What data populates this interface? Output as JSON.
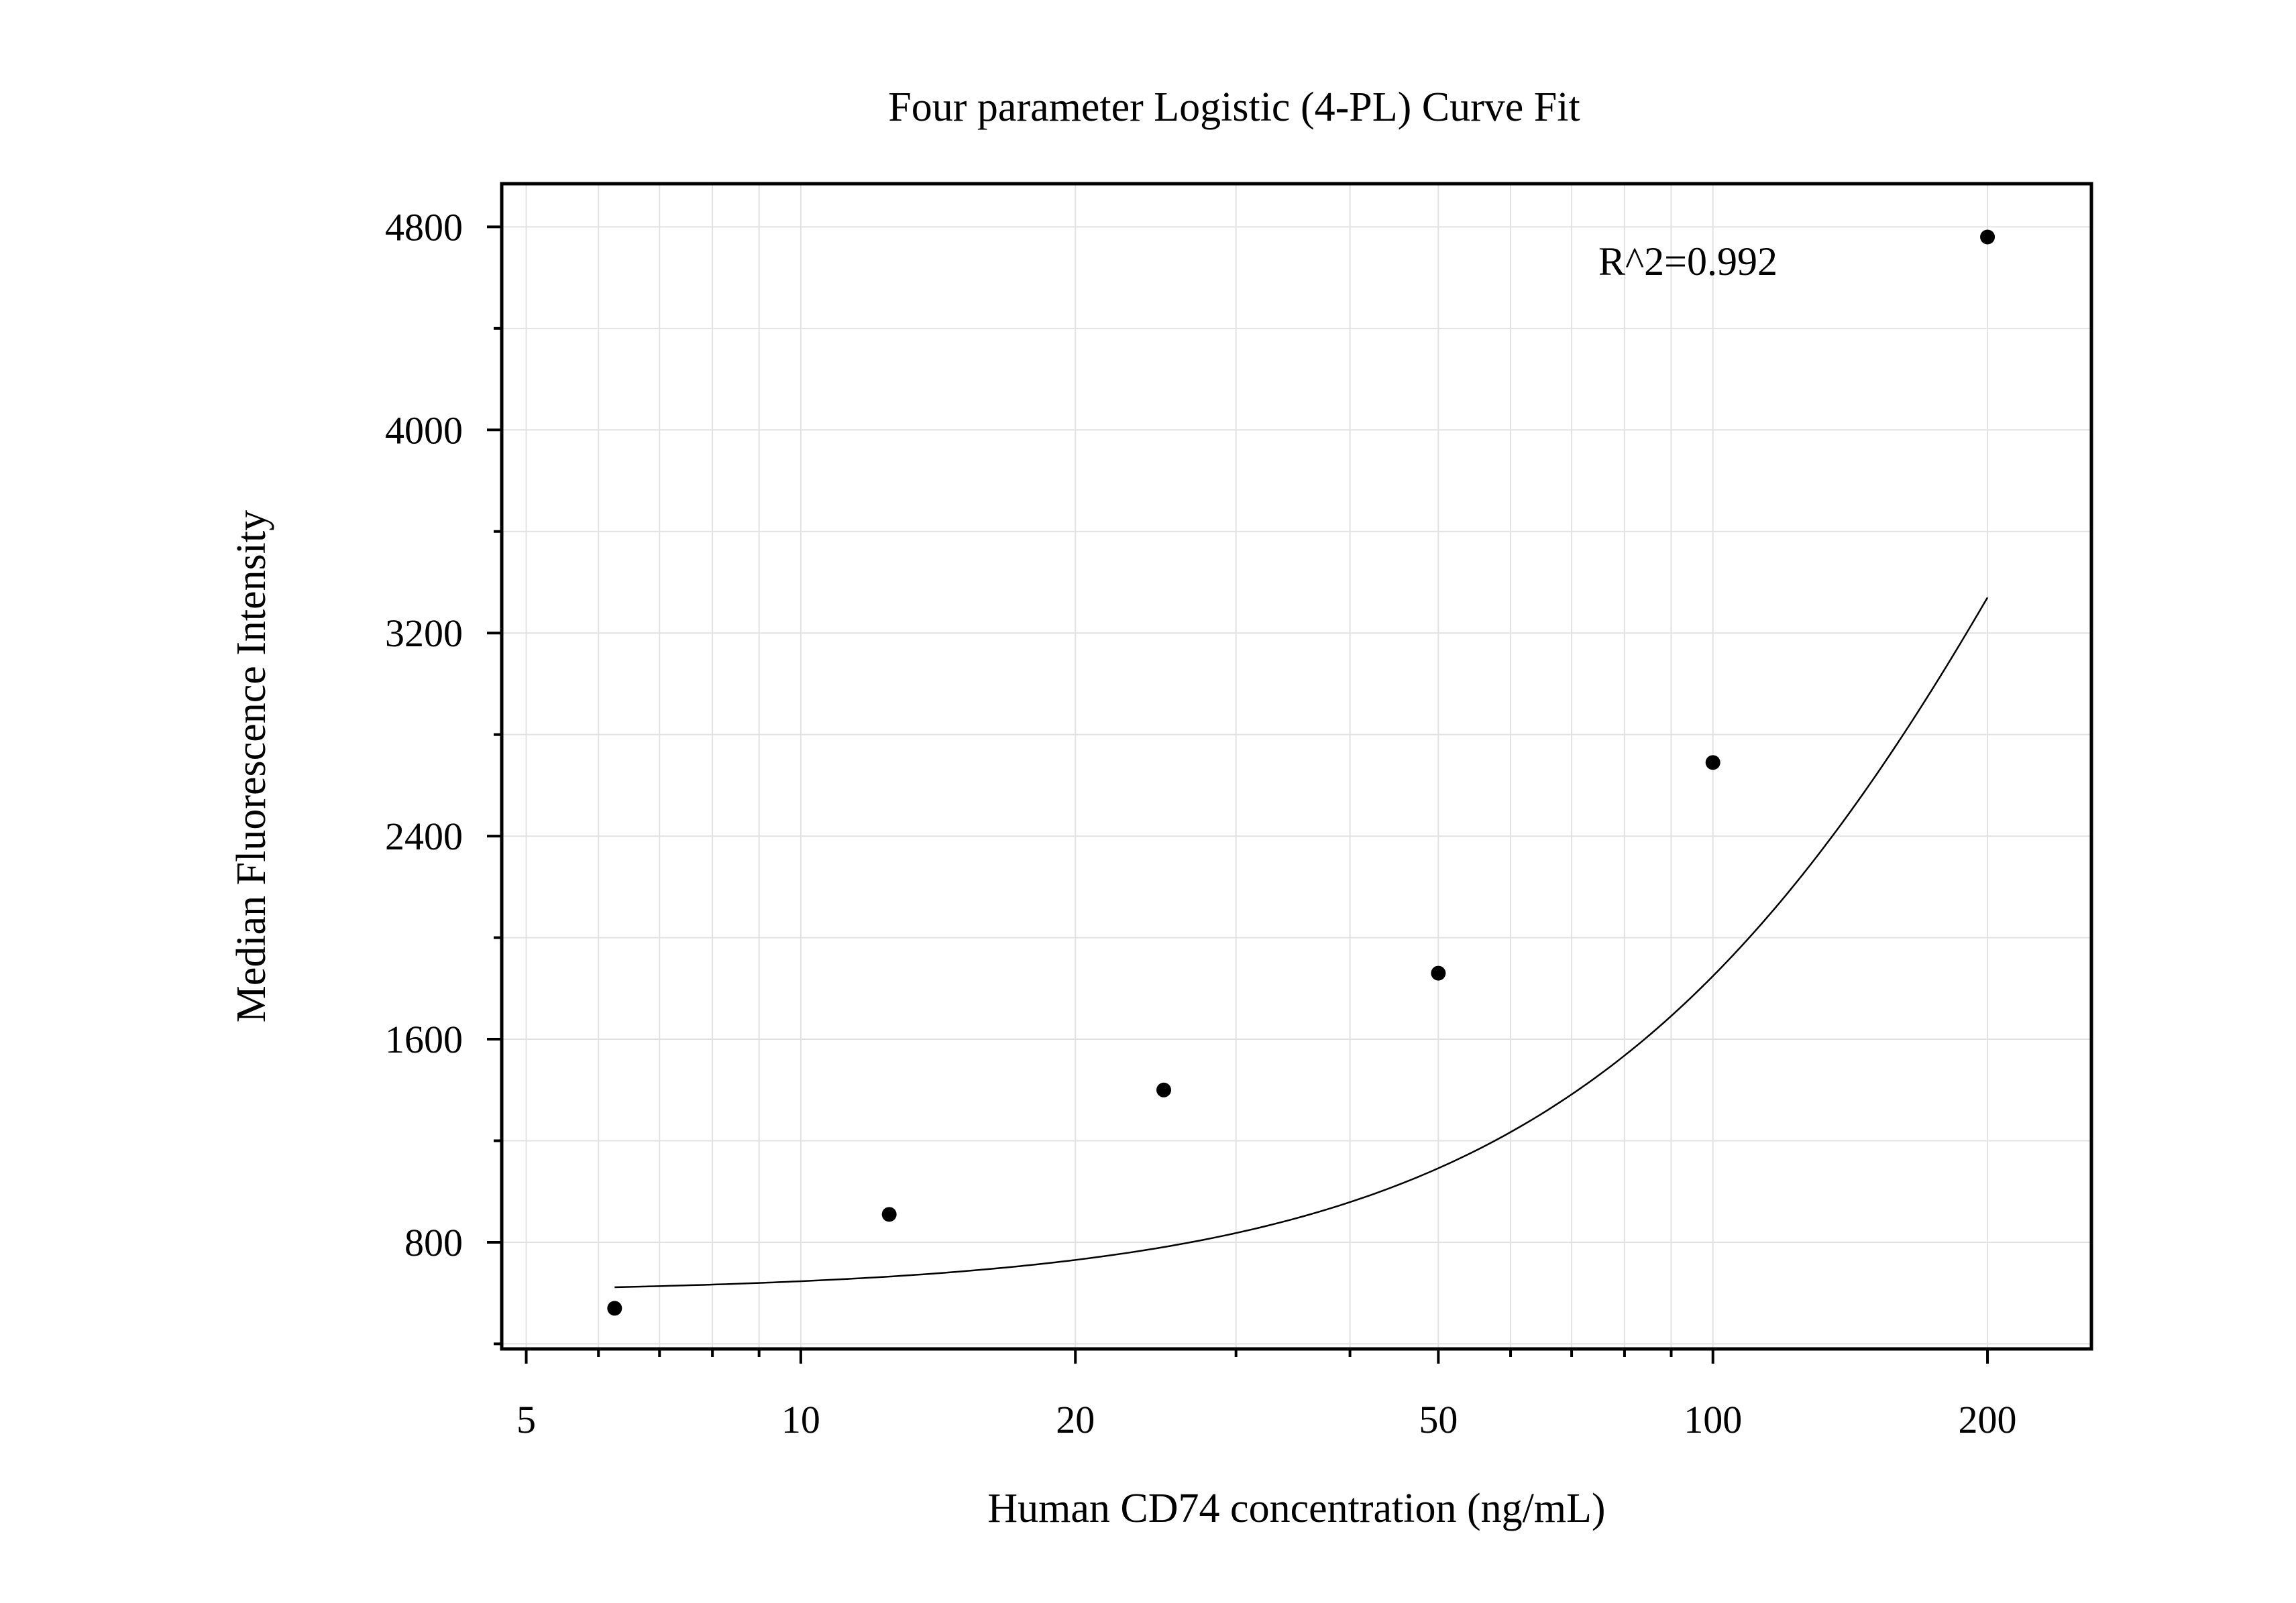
{
  "chart_data": {
    "type": "scatter",
    "title": "Four parameter Logistic (4-PL) Curve Fit",
    "xlabel": "Human CD74 concentration (ng/mL)",
    "ylabel": "Median Fluorescence Intensity",
    "x_scale": "log",
    "xlim": [
      4.7,
      260
    ],
    "ylim": [
      380,
      4970
    ],
    "x_ticks": [
      5,
      10,
      20,
      50,
      100,
      200
    ],
    "y_ticks": [
      800,
      1600,
      2400,
      3200,
      4000,
      4800
    ],
    "grid": true,
    "annotation": "R^2=0.992",
    "points": {
      "x": [
        6.25,
        12.5,
        25,
        50,
        100,
        200
      ],
      "y": [
        540,
        910,
        1400,
        1860,
        2690,
        4760
      ]
    },
    "fit_curve": {
      "model": "4-PL",
      "a": 600,
      "b": 1.5,
      "c": 305,
      "d": 8500
    },
    "colors": {
      "points": "#000000",
      "curve": "#000000",
      "grid": "#e2e2e2",
      "frame": "#000000"
    }
  }
}
